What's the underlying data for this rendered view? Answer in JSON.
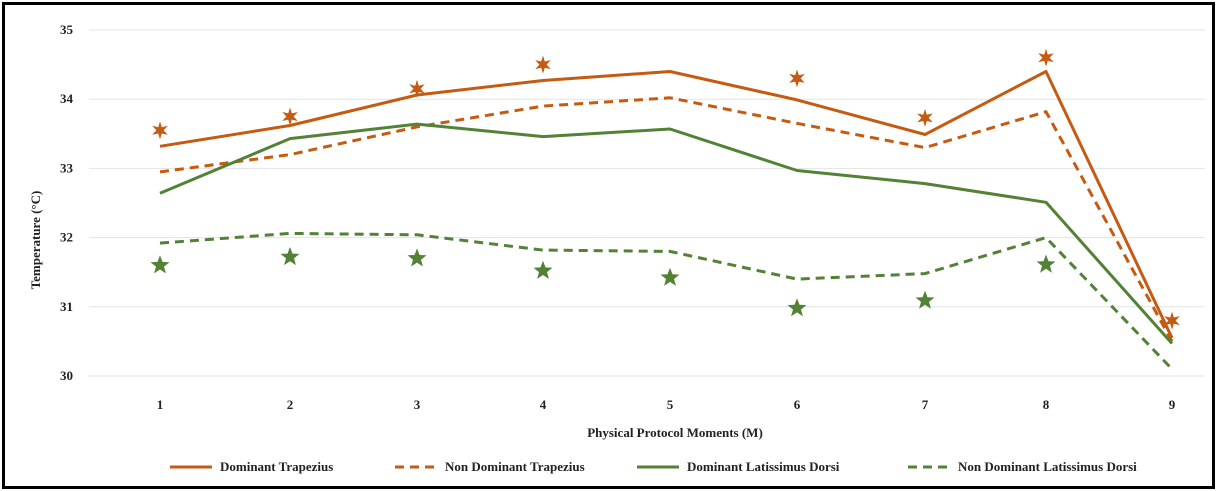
{
  "chart_data": {
    "type": "line",
    "title": "",
    "xlabel": "Physical Protocol Moments (M)",
    "ylabel": "Temperature (°C)",
    "categories": [
      "1",
      "2",
      "3",
      "4",
      "5",
      "6",
      "7",
      "8",
      "9"
    ],
    "x": [
      1,
      2,
      3,
      4,
      5,
      6,
      7,
      8,
      9
    ],
    "ylim": [
      30,
      35
    ],
    "yticks": [
      "30",
      "31",
      "32",
      "33",
      "34",
      "35"
    ],
    "grid": "horizontal",
    "legend_position": "bottom",
    "series": [
      {
        "name": "Dominant Trapezius",
        "color": "#C55A11",
        "style": "solid",
        "values": [
          33.32,
          33.62,
          34.06,
          34.27,
          34.4,
          33.99,
          33.49,
          34.4,
          30.55
        ]
      },
      {
        "name": "Non Dominant Trapezius",
        "color": "#C55A11",
        "style": "dashed",
        "values": [
          32.95,
          33.2,
          33.6,
          33.9,
          34.02,
          33.65,
          33.3,
          33.82,
          30.5
        ]
      },
      {
        "name": "Dominant Latissimus Dorsi",
        "color": "#538135",
        "style": "solid",
        "values": [
          32.64,
          33.43,
          33.64,
          33.46,
          33.57,
          32.97,
          32.78,
          32.51,
          30.47
        ]
      },
      {
        "name": "Non Dominant Latissimus Dorsi",
        "color": "#538135",
        "style": "dashed",
        "values": [
          31.92,
          32.06,
          32.04,
          31.82,
          31.8,
          31.4,
          31.48,
          32.0,
          30.1
        ]
      }
    ],
    "markers": [
      {
        "series_color": "#C55A11",
        "symbol": "six-point-star",
        "x": [
          1,
          2,
          3,
          4,
          6,
          7,
          8,
          9
        ],
        "values": [
          33.55,
          33.75,
          34.15,
          34.5,
          34.3,
          33.73,
          34.6,
          30.8
        ]
      },
      {
        "series_color": "#538135",
        "symbol": "five-point-star",
        "x": [
          1,
          2,
          3,
          4,
          5,
          6,
          7,
          8
        ],
        "values": [
          31.6,
          31.72,
          31.7,
          31.52,
          31.42,
          30.98,
          31.09,
          31.61
        ]
      }
    ]
  }
}
